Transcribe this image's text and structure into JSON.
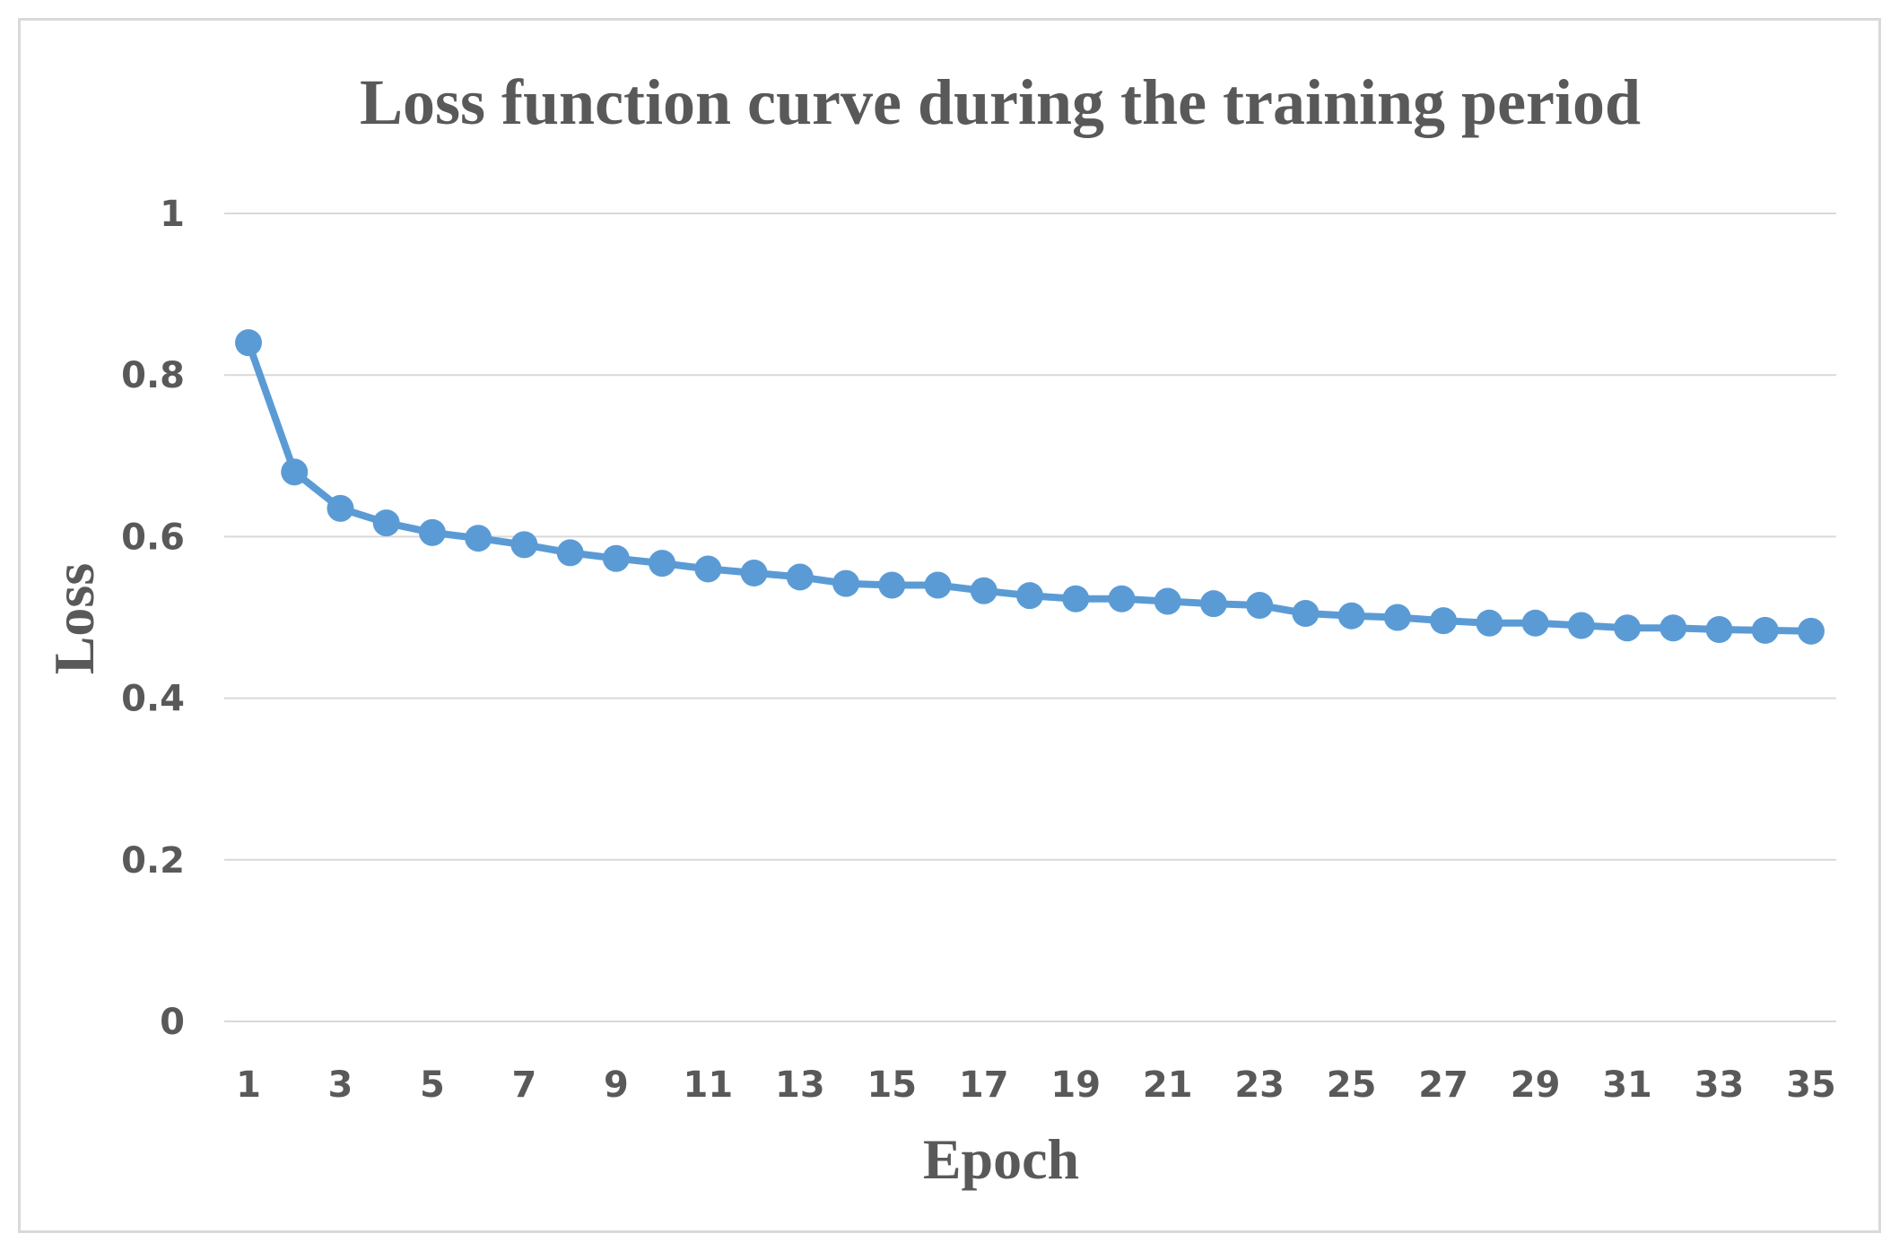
{
  "chart_data": {
    "type": "line",
    "title": "Loss function curve during the training period",
    "xlabel": "Epoch",
    "ylabel": "Loss",
    "ylim": [
      0,
      1
    ],
    "y_ticks": [
      "0",
      "0.2",
      "0.4",
      "0.6",
      "0.8",
      "1"
    ],
    "y_tick_values": [
      0,
      0.2,
      0.4,
      0.6,
      0.8,
      1
    ],
    "x_tick_labels": [
      "1",
      "3",
      "5",
      "7",
      "9",
      "11",
      "13",
      "15",
      "17",
      "19",
      "21",
      "23",
      "25",
      "27",
      "29",
      "31",
      "33",
      "35"
    ],
    "grid": true,
    "legend": "none",
    "series_color": "#5b9bd5",
    "series": [
      {
        "name": "Loss",
        "x": [
          1,
          2,
          3,
          4,
          5,
          6,
          7,
          8,
          9,
          10,
          11,
          12,
          13,
          14,
          15,
          16,
          17,
          18,
          19,
          20,
          21,
          22,
          23,
          24,
          25,
          26,
          27,
          28,
          29,
          30,
          31,
          32,
          33,
          34,
          35
        ],
        "values": [
          0.84,
          0.68,
          0.635,
          0.617,
          0.605,
          0.598,
          0.59,
          0.58,
          0.573,
          0.567,
          0.56,
          0.555,
          0.55,
          0.542,
          0.54,
          0.54,
          0.533,
          0.527,
          0.523,
          0.523,
          0.52,
          0.517,
          0.515,
          0.505,
          0.502,
          0.5,
          0.496,
          0.493,
          0.493,
          0.49,
          0.487,
          0.487,
          0.485,
          0.484,
          0.483
        ]
      }
    ]
  }
}
